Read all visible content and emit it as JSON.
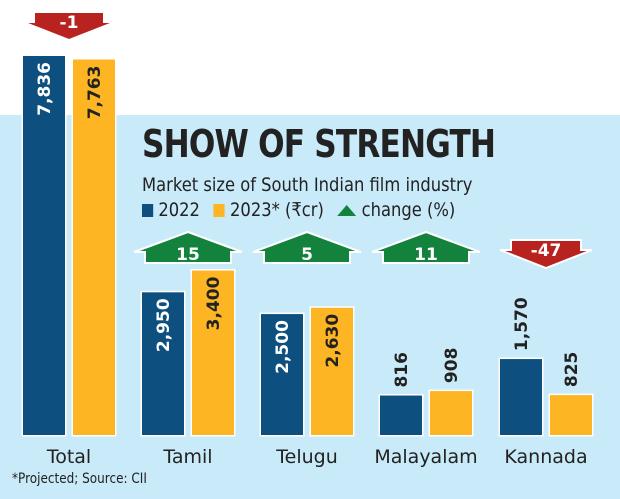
{
  "chart_data": {
    "type": "bar",
    "title": "SHOW OF STRENGTH",
    "subtitle": "Market size of South Indian film industry",
    "categories": [
      "Total",
      "Tamil",
      "Telugu",
      "Malayalam",
      "Kannada"
    ],
    "series": [
      {
        "name": "2022",
        "color": "#0d4f7f",
        "values": [
          7836,
          2950,
          2500,
          816,
          1570
        ],
        "labels": [
          "7,836",
          "2,950",
          "2,500",
          "816",
          "1,570"
        ]
      },
      {
        "name": "2023* (₹cr)",
        "color": "#fdb523",
        "values": [
          7763,
          3400,
          2630,
          908,
          825
        ],
        "labels": [
          "7,763",
          "3,400",
          "2,630",
          "908",
          "825"
        ]
      }
    ],
    "change": {
      "name": "change (%)",
      "values": [
        -1,
        15,
        5,
        11,
        -47
      ],
      "labels": [
        "-1",
        "15",
        "5",
        "11",
        "-47"
      ],
      "up_color": "#12823c",
      "down_color": "#b8231f"
    },
    "legend": {
      "items": [
        "2022",
        "2023* (₹cr)",
        "change (%)"
      ],
      "placement": "top-left"
    },
    "footnote": "*Projected; Source: CII",
    "grid": false
  },
  "colors": {
    "band": "#c9eaf9",
    "series_2022": "#0d4f7f",
    "series_2023": "#fdb523",
    "up": "#12823c",
    "down": "#b8231f"
  }
}
